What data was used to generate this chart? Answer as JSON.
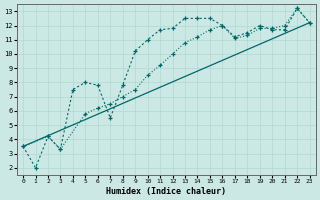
{
  "xlabel": "Humidex (Indice chaleur)",
  "bg_color": "#cce8e4",
  "grid_color": "#b0d8d4",
  "line_color": "#006868",
  "xlim": [
    -0.5,
    23.5
  ],
  "ylim": [
    1.5,
    13.5
  ],
  "xticks": [
    0,
    1,
    2,
    3,
    4,
    5,
    6,
    7,
    8,
    9,
    10,
    11,
    12,
    13,
    14,
    15,
    16,
    17,
    18,
    19,
    20,
    21,
    22,
    23
  ],
  "yticks": [
    2,
    3,
    4,
    5,
    6,
    7,
    8,
    9,
    10,
    11,
    12,
    13
  ],
  "series1_x": [
    0,
    1,
    2,
    3,
    4,
    5,
    6,
    7,
    8,
    9,
    10,
    11,
    12,
    13,
    14,
    15,
    16,
    17,
    18,
    19,
    20,
    21,
    22,
    23
  ],
  "series1_y": [
    3.5,
    2.0,
    4.2,
    3.3,
    7.5,
    8.0,
    7.8,
    5.5,
    7.8,
    10.2,
    11.0,
    11.7,
    11.8,
    12.5,
    12.5,
    12.5,
    12.0,
    11.2,
    11.5,
    12.0,
    11.7,
    11.7,
    13.2,
    12.2
  ],
  "series2_x": [
    0,
    2,
    3,
    5,
    6,
    7,
    8,
    9,
    10,
    11,
    12,
    13,
    14,
    15,
    16,
    17,
    18,
    19,
    20,
    21,
    22,
    23
  ],
  "series2_y": [
    3.5,
    4.2,
    3.3,
    5.8,
    6.2,
    6.5,
    7.0,
    7.5,
    8.5,
    9.2,
    10.0,
    10.8,
    11.2,
    11.7,
    12.0,
    11.1,
    11.3,
    11.8,
    11.8,
    12.0,
    13.2,
    12.2
  ],
  "series3_x": [
    0,
    23
  ],
  "series3_y": [
    3.5,
    12.2
  ]
}
